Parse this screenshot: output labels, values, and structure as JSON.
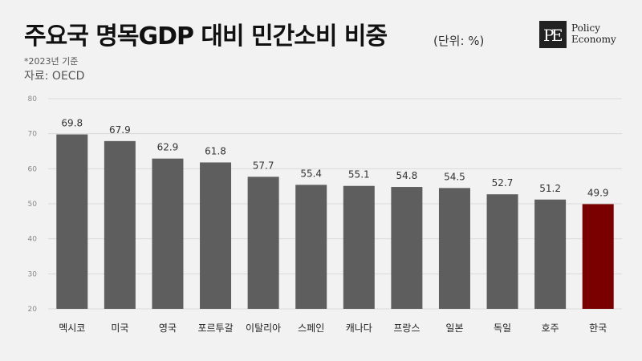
{
  "header": {
    "title": "주요국 명목GDP 대비 민간소비 비중",
    "unit": "(단위: %)",
    "note": "*2023년 기준",
    "source": "자료: OECD"
  },
  "logo": {
    "line1": "Policy",
    "line2": "Economy"
  },
  "colors": {
    "bar": "#5e5e5e",
    "highlight": "#7a0000",
    "grid": "#d9d9d9"
  },
  "chart_data": {
    "type": "bar",
    "title": "주요국 명목GDP 대비 민간소비 비중",
    "xlabel": "",
    "ylabel": "",
    "ylim": [
      20,
      80
    ],
    "yticks": [
      20,
      30,
      40,
      50,
      60,
      70,
      80
    ],
    "grid": true,
    "legend": "none",
    "categories": [
      "멕시코",
      "미국",
      "영국",
      "포르투갈",
      "이탈리아",
      "스페인",
      "캐나다",
      "프랑스",
      "일본",
      "독일",
      "호주",
      "한국"
    ],
    "values": [
      69.8,
      67.9,
      62.9,
      61.8,
      57.7,
      55.4,
      55.1,
      54.8,
      54.5,
      52.7,
      51.2,
      49.9
    ],
    "value_labels": [
      "69.8",
      "67.9",
      "62.9",
      "61.8",
      "57.7",
      "55.4",
      "55.1",
      "54.8",
      "54.5",
      "52.7",
      "51.2",
      "49.9"
    ],
    "highlight_category": "한국"
  }
}
